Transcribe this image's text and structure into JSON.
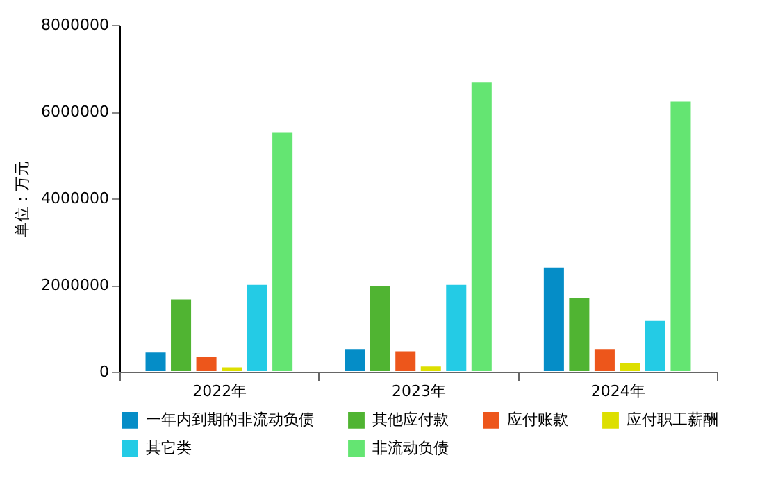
{
  "chart_data": {
    "type": "bar",
    "ylabel": "单位：万元",
    "categories": [
      "2022年",
      "2023年",
      "2024年"
    ],
    "series": [
      {
        "name": "一年内到期的非流动负债",
        "color": "#058dc7",
        "values": [
          460000,
          540000,
          2420000
        ]
      },
      {
        "name": "其他应付款",
        "color": "#50b432",
        "values": [
          1690000,
          2000000,
          1720000
        ]
      },
      {
        "name": "应付账款",
        "color": "#ed561b",
        "values": [
          370000,
          490000,
          540000
        ]
      },
      {
        "name": "应付职工薪酬",
        "color": "#dddf00",
        "values": [
          120000,
          140000,
          210000
        ]
      },
      {
        "name": "其它类",
        "color": "#24cbe5",
        "values": [
          2020000,
          2020000,
          1190000
        ]
      },
      {
        "name": "非流动负债",
        "color": "#64e572",
        "values": [
          5530000,
          6700000,
          6250000
        ]
      }
    ],
    "ylim": [
      0,
      8000000
    ],
    "yticks": [
      0,
      2000000,
      4000000,
      6000000,
      8000000
    ],
    "grid": false,
    "legend": "bottom"
  }
}
